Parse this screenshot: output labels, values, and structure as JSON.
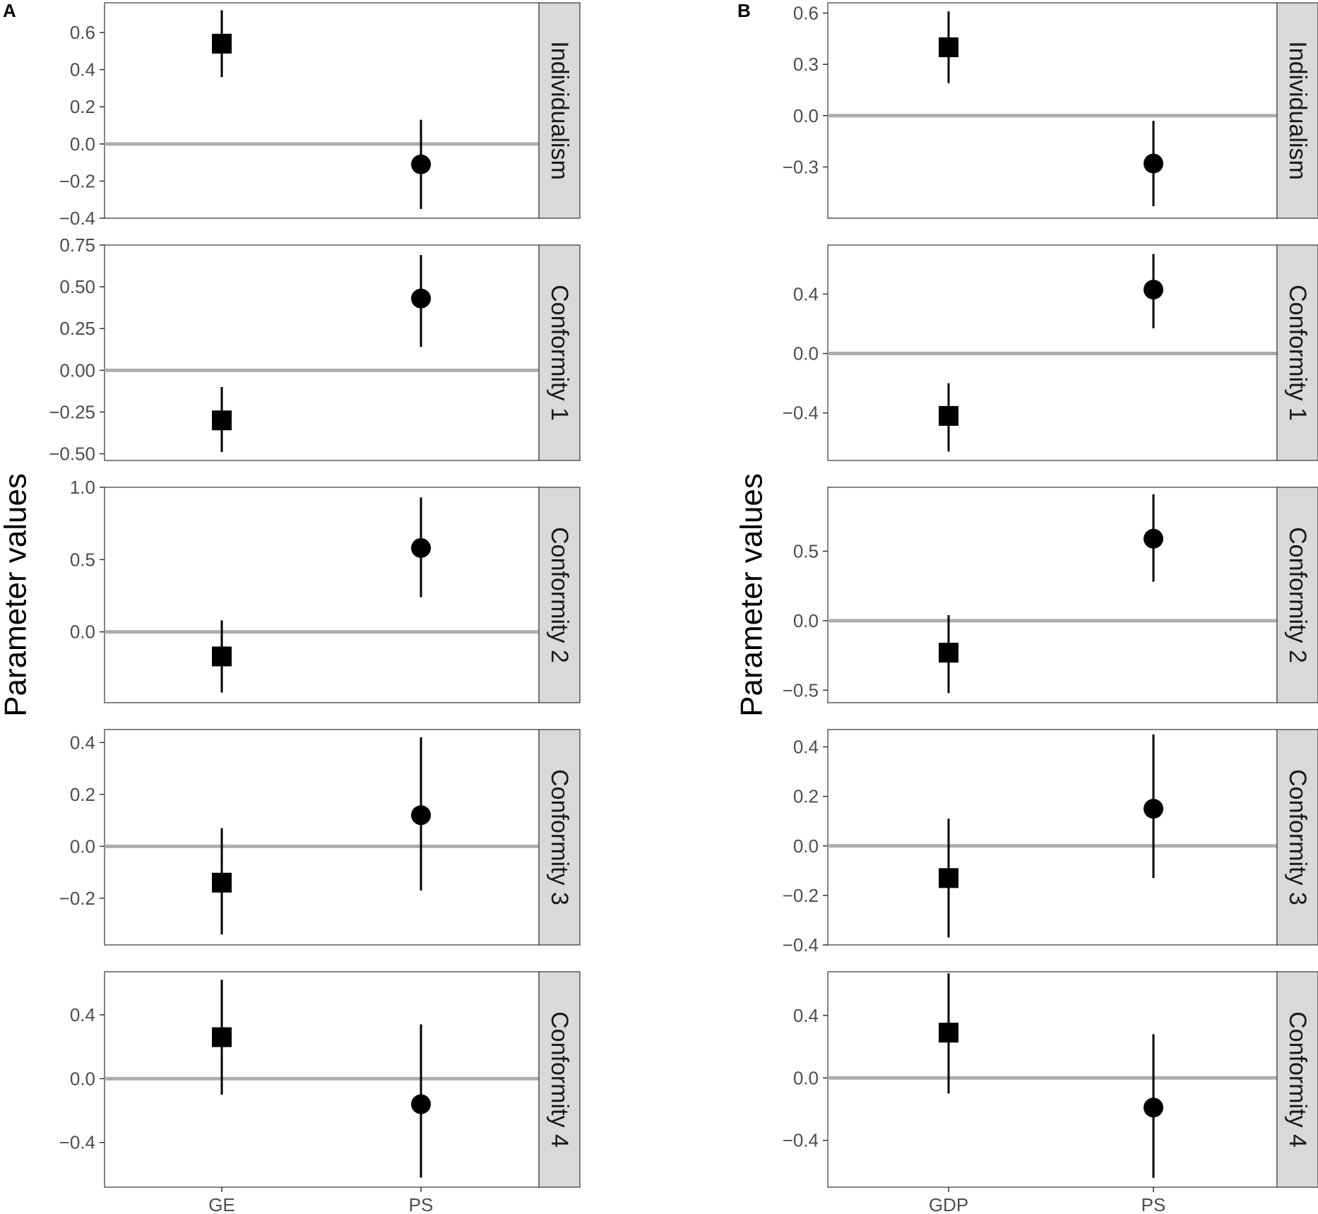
{
  "chart_data": [
    {
      "type": "scatter",
      "panel_label": "A",
      "ylabel": "Parameter values",
      "categories": [
        "GE",
        "PS"
      ],
      "marker_shapes": [
        "square",
        "circle"
      ],
      "reference_line": 0,
      "grid": false,
      "facets": [
        {
          "label": "Individualism",
          "yticks": [
            0.6,
            0.4,
            0.2,
            0.0,
            -0.2,
            -0.4
          ],
          "tick_labels": [
            "0.6",
            "0.4",
            "0.2",
            "0.0",
            "−0.2",
            "−0.4"
          ],
          "ylim": [
            -0.4,
            0.76
          ],
          "points": [
            {
              "category": "GE",
              "estimate": 0.54,
              "lower": 0.36,
              "upper": 0.72
            },
            {
              "category": "PS",
              "estimate": -0.11,
              "lower": -0.35,
              "upper": 0.13
            }
          ]
        },
        {
          "label": "Conformity 1",
          "yticks": [
            0.75,
            0.5,
            0.25,
            0.0,
            -0.25,
            -0.5
          ],
          "tick_labels": [
            "0.75",
            "0.50",
            "0.25",
            "0.00",
            "−0.25",
            "−0.50"
          ],
          "ylim": [
            -0.54,
            0.75
          ],
          "points": [
            {
              "category": "GE",
              "estimate": -0.3,
              "lower": -0.49,
              "upper": -0.1
            },
            {
              "category": "PS",
              "estimate": 0.43,
              "lower": 0.14,
              "upper": 0.69
            }
          ]
        },
        {
          "label": "Conformity 2",
          "yticks": [
            1.0,
            0.5,
            0.0
          ],
          "tick_labels": [
            "1.0",
            "0.5",
            "0.0"
          ],
          "ylim": [
            -0.49,
            1.0
          ],
          "points": [
            {
              "category": "GE",
              "estimate": -0.17,
              "lower": -0.42,
              "upper": 0.08
            },
            {
              "category": "PS",
              "estimate": 0.58,
              "lower": 0.24,
              "upper": 0.93
            }
          ]
        },
        {
          "label": "Conformity 3",
          "yticks": [
            0.4,
            0.2,
            0.0,
            -0.2
          ],
          "tick_labels": [
            "0.4",
            "0.2",
            "0.0",
            "−0.2"
          ],
          "ylim": [
            -0.38,
            0.45
          ],
          "points": [
            {
              "category": "GE",
              "estimate": -0.14,
              "lower": -0.34,
              "upper": 0.07
            },
            {
              "category": "PS",
              "estimate": 0.12,
              "lower": -0.17,
              "upper": 0.42
            }
          ]
        },
        {
          "label": "Conformity 4",
          "yticks": [
            0.4,
            0.0,
            -0.4
          ],
          "tick_labels": [
            "0.4",
            "0.0",
            "−0.4"
          ],
          "ylim": [
            -0.68,
            0.67
          ],
          "points": [
            {
              "category": "GE",
              "estimate": 0.26,
              "lower": -0.1,
              "upper": 0.62
            },
            {
              "category": "PS",
              "estimate": -0.16,
              "lower": -0.62,
              "upper": 0.34
            }
          ]
        }
      ]
    },
    {
      "type": "scatter",
      "panel_label": "B",
      "ylabel": "Parameter values",
      "categories": [
        "GDP",
        "PS"
      ],
      "marker_shapes": [
        "square",
        "circle"
      ],
      "reference_line": 0,
      "grid": false,
      "facets": [
        {
          "label": "Individualism",
          "yticks": [
            0.6,
            0.3,
            0.0,
            -0.3
          ],
          "tick_labels": [
            "0.6",
            "0.3",
            "0.0",
            "−0.3"
          ],
          "ylim": [
            -0.6,
            0.66
          ],
          "points": [
            {
              "category": "GDP",
              "estimate": 0.4,
              "lower": 0.19,
              "upper": 0.61
            },
            {
              "category": "PS",
              "estimate": -0.28,
              "lower": -0.53,
              "upper": -0.03
            }
          ]
        },
        {
          "label": "Conformity 1",
          "yticks": [
            0.4,
            0.0,
            -0.4
          ],
          "tick_labels": [
            "0.4",
            "0.0",
            "−0.4"
          ],
          "ylim": [
            -0.72,
            0.73
          ],
          "points": [
            {
              "category": "GDP",
              "estimate": -0.42,
              "lower": -0.66,
              "upper": -0.2
            },
            {
              "category": "PS",
              "estimate": 0.43,
              "lower": 0.17,
              "upper": 0.67
            }
          ]
        },
        {
          "label": "Conformity 2",
          "yticks": [
            0.5,
            0.0,
            -0.5
          ],
          "tick_labels": [
            "0.5",
            "0.0",
            "−0.5"
          ],
          "ylim": [
            -0.59,
            0.96
          ],
          "points": [
            {
              "category": "GDP",
              "estimate": -0.23,
              "lower": -0.52,
              "upper": 0.04
            },
            {
              "category": "PS",
              "estimate": 0.59,
              "lower": 0.28,
              "upper": 0.91
            }
          ]
        },
        {
          "label": "Conformity 3",
          "yticks": [
            0.4,
            0.2,
            0.0,
            -0.2,
            -0.4
          ],
          "tick_labels": [
            "0.4",
            "0.2",
            "0.0",
            "−0.2",
            "−0.4"
          ],
          "ylim": [
            -0.4,
            0.47
          ],
          "points": [
            {
              "category": "GDP",
              "estimate": -0.13,
              "lower": -0.37,
              "upper": 0.11
            },
            {
              "category": "PS",
              "estimate": 0.15,
              "lower": -0.13,
              "upper": 0.45
            }
          ]
        },
        {
          "label": "Conformity 4",
          "yticks": [
            0.4,
            0.0,
            -0.4
          ],
          "tick_labels": [
            "0.4",
            "0.0",
            "−0.4"
          ],
          "ylim": [
            -0.7,
            0.68
          ],
          "points": [
            {
              "category": "GDP",
              "estimate": 0.29,
              "lower": -0.1,
              "upper": 0.67
            },
            {
              "category": "PS",
              "estimate": -0.19,
              "lower": -0.64,
              "upper": 0.28
            }
          ]
        }
      ]
    }
  ]
}
